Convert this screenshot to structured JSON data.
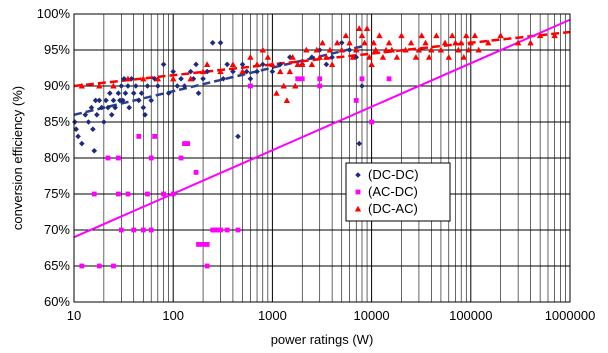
{
  "chart_data": {
    "type": "scatter",
    "title": "",
    "xlabel": "power ratings (W)",
    "ylabel": "conversion efficiency (%)",
    "x_scale": "log",
    "xlim": [
      10,
      1000000
    ],
    "ylim": [
      60,
      100
    ],
    "x_ticks": [
      "10",
      "100",
      "1000",
      "10000",
      "100000",
      "1000000"
    ],
    "y_ticks": [
      "60%",
      "65%",
      "70%",
      "75%",
      "80%",
      "85%",
      "90%",
      "95%",
      "100%"
    ],
    "grid": true,
    "legend_position": "right-center",
    "series": [
      {
        "name": "(DC-DC)",
        "marker": "diamond",
        "color": "#1f2a7a",
        "points": [
          [
            10.2,
            85
          ],
          [
            10.5,
            84
          ],
          [
            11,
            83
          ],
          [
            12,
            82
          ],
          [
            13,
            86
          ],
          [
            14,
            85
          ],
          [
            15,
            87
          ],
          [
            15.5,
            84
          ],
          [
            16,
            81
          ],
          [
            16.5,
            88
          ],
          [
            17,
            86
          ],
          [
            18,
            88
          ],
          [
            19,
            87
          ],
          [
            20,
            85
          ],
          [
            21,
            88
          ],
          [
            22,
            87
          ],
          [
            23,
            89
          ],
          [
            24,
            86
          ],
          [
            25,
            88
          ],
          [
            26,
            87
          ],
          [
            28,
            89
          ],
          [
            29,
            88
          ],
          [
            30,
            90
          ],
          [
            31,
            88
          ],
          [
            32,
            91
          ],
          [
            33,
            89
          ],
          [
            35,
            90
          ],
          [
            36,
            87
          ],
          [
            38,
            91
          ],
          [
            40,
            89
          ],
          [
            42,
            90
          ],
          [
            45,
            88
          ],
          [
            48,
            89
          ],
          [
            50,
            87
          ],
          [
            52,
            86
          ],
          [
            55,
            90
          ],
          [
            60,
            88
          ],
          [
            65,
            91
          ],
          [
            70,
            90
          ],
          [
            80,
            93
          ],
          [
            90,
            89
          ],
          [
            100,
            92
          ],
          [
            110,
            90
          ],
          [
            120,
            91
          ],
          [
            130,
            90
          ],
          [
            150,
            92
          ],
          [
            160,
            91
          ],
          [
            170,
            93
          ],
          [
            180,
            89
          ],
          [
            200,
            91
          ],
          [
            220,
            92
          ],
          [
            250,
            96
          ],
          [
            300,
            96
          ],
          [
            320,
            91
          ],
          [
            350,
            93
          ],
          [
            400,
            92
          ],
          [
            450,
            83
          ],
          [
            500,
            93
          ],
          [
            550,
            92
          ],
          [
            600,
            91
          ],
          [
            700,
            92
          ],
          [
            800,
            93
          ],
          [
            1000,
            92
          ],
          [
            1200,
            93
          ],
          [
            1500,
            94
          ],
          [
            2000,
            93
          ],
          [
            2500,
            94
          ],
          [
            3000,
            95
          ],
          [
            3500,
            93
          ],
          [
            4000,
            94
          ],
          [
            5000,
            96
          ],
          [
            6000,
            95
          ],
          [
            7000,
            94
          ],
          [
            7500,
            82
          ],
          [
            8000,
            90
          ]
        ]
      },
      {
        "name": "(AC-DC)",
        "marker": "square",
        "color": "#ff00ff",
        "points": [
          [
            12,
            65
          ],
          [
            16,
            75
          ],
          [
            18,
            65
          ],
          [
            22,
            80
          ],
          [
            25,
            65
          ],
          [
            28,
            80
          ],
          [
            28,
            75
          ],
          [
            30,
            70
          ],
          [
            35,
            75
          ],
          [
            40,
            70
          ],
          [
            45,
            83
          ],
          [
            50,
            70
          ],
          [
            55,
            75
          ],
          [
            60,
            80
          ],
          [
            60,
            70
          ],
          [
            65,
            83
          ],
          [
            80,
            75
          ],
          [
            100,
            75
          ],
          [
            120,
            80
          ],
          [
            130,
            82
          ],
          [
            140,
            82
          ],
          [
            170,
            78
          ],
          [
            180,
            68
          ],
          [
            200,
            68
          ],
          [
            220,
            65
          ],
          [
            220,
            68
          ],
          [
            250,
            70
          ],
          [
            260,
            70
          ],
          [
            280,
            70
          ],
          [
            300,
            70
          ],
          [
            350,
            70
          ],
          [
            450,
            70
          ],
          [
            600,
            90
          ],
          [
            1800,
            91
          ],
          [
            2000,
            91
          ],
          [
            3000,
            91
          ],
          [
            3000,
            90
          ],
          [
            7000,
            88
          ],
          [
            8000,
            91
          ],
          [
            10000,
            85
          ],
          [
            15000,
            91
          ]
        ]
      },
      {
        "name": "(DC-AC)",
        "marker": "triangle",
        "color": "#ff0000",
        "points": [
          [
            12,
            90
          ],
          [
            18,
            90
          ],
          [
            25,
            90
          ],
          [
            35,
            91
          ],
          [
            50,
            91
          ],
          [
            70,
            91
          ],
          [
            100,
            91
          ],
          [
            150,
            91
          ],
          [
            200,
            92
          ],
          [
            220,
            93
          ],
          [
            300,
            92
          ],
          [
            400,
            93
          ],
          [
            500,
            92
          ],
          [
            600,
            94
          ],
          [
            700,
            93
          ],
          [
            800,
            95
          ],
          [
            900,
            94
          ],
          [
            1000,
            93
          ],
          [
            1100,
            89
          ],
          [
            1200,
            92
          ],
          [
            1300,
            90
          ],
          [
            1400,
            88
          ],
          [
            1500,
            92
          ],
          [
            1600,
            94
          ],
          [
            1700,
            90
          ],
          [
            1800,
            93
          ],
          [
            2000,
            93
          ],
          [
            2200,
            95
          ],
          [
            2500,
            93
          ],
          [
            2800,
            95
          ],
          [
            3000,
            94
          ],
          [
            3200,
            96
          ],
          [
            3500,
            94
          ],
          [
            3800,
            95
          ],
          [
            4000,
            93
          ],
          [
            4500,
            96
          ],
          [
            5000,
            95
          ],
          [
            5500,
            97
          ],
          [
            6000,
            96
          ],
          [
            6500,
            94
          ],
          [
            7000,
            95
          ],
          [
            7500,
            98
          ],
          [
            8000,
            97
          ],
          [
            8500,
            96
          ],
          [
            9000,
            98
          ],
          [
            9500,
            94
          ],
          [
            10000,
            93
          ],
          [
            10500,
            96
          ],
          [
            11000,
            95
          ],
          [
            12000,
            97
          ],
          [
            13000,
            94
          ],
          [
            14000,
            95
          ],
          [
            15000,
            96
          ],
          [
            16000,
            95
          ],
          [
            18000,
            94
          ],
          [
            20000,
            97
          ],
          [
            22000,
            95
          ],
          [
            25000,
            96
          ],
          [
            28000,
            94
          ],
          [
            30000,
            95
          ],
          [
            32000,
            97
          ],
          [
            35000,
            96
          ],
          [
            38000,
            94
          ],
          [
            40000,
            95
          ],
          [
            45000,
            97
          ],
          [
            50000,
            95
          ],
          [
            55000,
            96
          ],
          [
            60000,
            94
          ],
          [
            65000,
            97
          ],
          [
            70000,
            96
          ],
          [
            75000,
            95
          ],
          [
            80000,
            96
          ],
          [
            85000,
            94
          ],
          [
            90000,
            97
          ],
          [
            95000,
            95
          ],
          [
            100000,
            96
          ],
          [
            110000,
            97
          ],
          [
            120000,
            95
          ],
          [
            150000,
            96
          ],
          [
            200000,
            97
          ],
          [
            300000,
            96
          ],
          [
            400000,
            96
          ],
          [
            500000,
            97
          ],
          [
            700000,
            97
          ]
        ]
      }
    ],
    "trendlines": [
      {
        "series": "(DC-DC)",
        "type": "logarithmic",
        "color": "#2a3f8f",
        "style": "dashed",
        "from": [
          10,
          86
        ],
        "to": [
          8000,
          95.5
        ]
      },
      {
        "series": "(DC-AC)",
        "type": "logarithmic",
        "color": "#ff0000",
        "style": "dashed",
        "from": [
          10,
          90
        ],
        "to": [
          1000000,
          97.5
        ]
      },
      {
        "series": "(AC-DC)",
        "type": "logarithmic",
        "color": "#ff00ff",
        "style": "solid",
        "from": [
          10,
          69
        ],
        "to": [
          1000000,
          99.2
        ]
      }
    ]
  }
}
